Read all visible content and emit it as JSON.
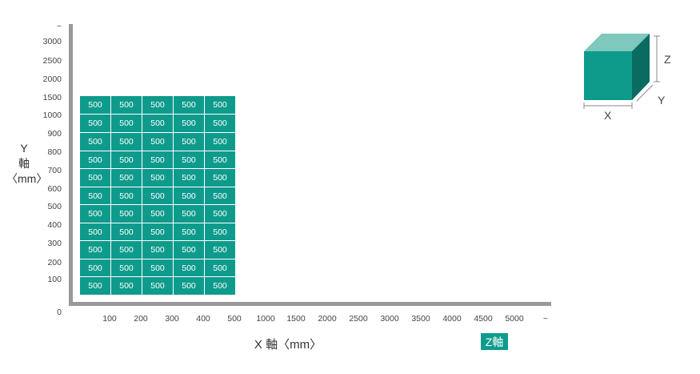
{
  "chart_data": {
    "type": "table",
    "y_axis": {
      "label_parts": [
        "Y",
        "軸",
        "〈mm〉"
      ],
      "ticks": [
        "~",
        "3000",
        "2500",
        "2000",
        "1500",
        "1000",
        "900",
        "800",
        "700",
        "600",
        "500",
        "400",
        "300",
        "200",
        "100"
      ],
      "origin": "0"
    },
    "x_axis": {
      "label": "X 軸〈mm〉",
      "ticks": [
        "100",
        "200",
        "300",
        "400",
        "500",
        "1000",
        "1500",
        "2000",
        "2500",
        "3000",
        "3500",
        "4000",
        "4500",
        "5000",
        "~"
      ]
    },
    "z_axis_badge": "Z軸",
    "grid": {
      "rows": 11,
      "cols": 5,
      "values": [
        [
          "500",
          "500",
          "500",
          "500",
          "500"
        ],
        [
          "500",
          "500",
          "500",
          "500",
          "500"
        ],
        [
          "500",
          "500",
          "500",
          "500",
          "500"
        ],
        [
          "500",
          "500",
          "500",
          "500",
          "500"
        ],
        [
          "500",
          "500",
          "500",
          "500",
          "500"
        ],
        [
          "500",
          "500",
          "500",
          "500",
          "500"
        ],
        [
          "500",
          "500",
          "500",
          "500",
          "500"
        ],
        [
          "500",
          "500",
          "500",
          "500",
          "500"
        ],
        [
          "500",
          "500",
          "500",
          "500",
          "500"
        ],
        [
          "500",
          "500",
          "500",
          "500",
          "500"
        ],
        [
          "500",
          "500",
          "500",
          "500",
          "500"
        ]
      ]
    },
    "cube_labels": {
      "x": "X",
      "y": "Y",
      "z": "Z"
    },
    "colors": {
      "accent": "#0e9b8c",
      "accent_light": "#7ec8bd",
      "accent_dark": "#0a6b61",
      "axis": "#999999"
    }
  }
}
